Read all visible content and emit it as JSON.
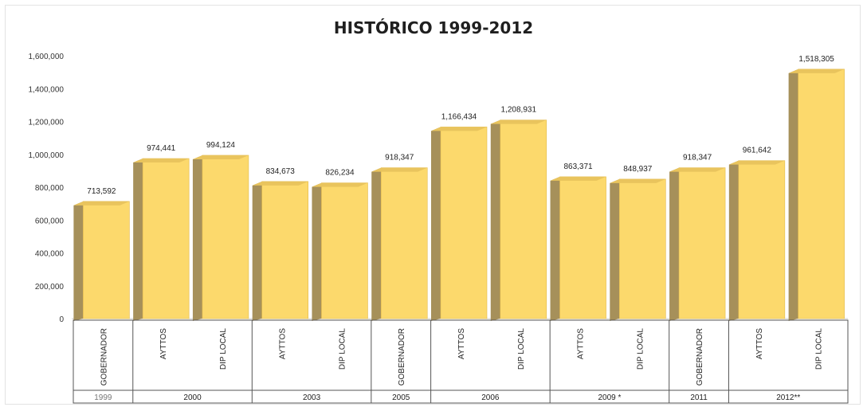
{
  "chart_data": {
    "type": "bar",
    "title": "HISTÓRICO 1999-2012",
    "ylim": [
      0,
      1600000
    ],
    "yticks": [
      "0",
      "200,000",
      "400,000",
      "600,000",
      "800,000",
      "1,000,000",
      "1,200,000",
      "1,400,000",
      "1,600,000"
    ],
    "grid": false,
    "legend": "none",
    "bar_color": "#fcd96c",
    "bar_side_color": "#a6905a",
    "bars": [
      {
        "category": "GOBERNADOR",
        "value": 713592,
        "label": "713,592"
      },
      {
        "category": "AYTTOS",
        "value": 974441,
        "label": "974,441"
      },
      {
        "category": "DIP LOCAL",
        "value": 994124,
        "label": "994,124"
      },
      {
        "category": "AYTTOS",
        "value": 834673,
        "label": "834,673"
      },
      {
        "category": "DIP LOCAL",
        "value": 826234,
        "label": "826,234"
      },
      {
        "category": "GOBERNADOR",
        "value": 918347,
        "label": "918,347"
      },
      {
        "category": "AYTTOS",
        "value": 1166434,
        "label": "1,166,434"
      },
      {
        "category": "DIP LOCAL",
        "value": 1208931,
        "label": "1,208,931"
      },
      {
        "category": "AYTTOS",
        "value": 863371,
        "label": "863,371"
      },
      {
        "category": "DIP LOCAL",
        "value": 848937,
        "label": "848,937"
      },
      {
        "category": "GOBERNADOR",
        "value": 918347,
        "label": "918,347"
      },
      {
        "category": "AYTTOS",
        "value": 961642,
        "label": "961,642"
      },
      {
        "category": "DIP LOCAL",
        "value": 1518305,
        "label": "1,518,305"
      }
    ],
    "groups": [
      {
        "year": "1999",
        "count": 1
      },
      {
        "year": "2000",
        "count": 2
      },
      {
        "year": "2003",
        "count": 2
      },
      {
        "year": "2005",
        "count": 1
      },
      {
        "year": "2006",
        "count": 2
      },
      {
        "year": "2009 *",
        "count": 2
      },
      {
        "year": "2011",
        "count": 1
      },
      {
        "year": "2012**",
        "count": 2
      }
    ]
  }
}
